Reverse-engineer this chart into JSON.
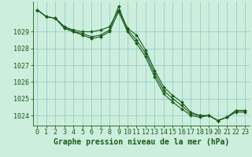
{
  "title": "Graphe pression niveau de la mer (hPa)",
  "background_color": "#cceedd",
  "grid_color": "#99cccc",
  "line_color": "#1a5c1a",
  "marker_color": "#1a5c1a",
  "xlim": [
    -0.5,
    23.5
  ],
  "ylim": [
    1023.4,
    1030.8
  ],
  "yticks": [
    1024,
    1025,
    1026,
    1027,
    1028,
    1029
  ],
  "xticks": [
    0,
    1,
    2,
    3,
    4,
    5,
    6,
    7,
    8,
    9,
    10,
    11,
    12,
    13,
    14,
    15,
    16,
    17,
    18,
    19,
    20,
    21,
    22,
    23
  ],
  "series": [
    [
      1030.3,
      1029.9,
      1029.8,
      1029.3,
      1029.1,
      1029.0,
      1029.0,
      1029.1,
      1029.3,
      1030.3,
      1029.2,
      1028.8,
      1027.9,
      1026.7,
      1025.7,
      1025.2,
      1024.8,
      1024.2,
      1024.0,
      1024.0,
      1023.7,
      1023.9,
      1024.3,
      1024.3
    ],
    [
      1030.3,
      1029.9,
      1029.8,
      1029.3,
      1029.0,
      1028.9,
      1028.7,
      1028.8,
      1029.1,
      1030.5,
      1029.1,
      1028.5,
      1027.7,
      1026.5,
      1025.5,
      1025.0,
      1024.6,
      1024.1,
      1024.0,
      1024.0,
      1023.7,
      1023.9,
      1024.3,
      1024.3
    ],
    [
      1030.3,
      1029.9,
      1029.8,
      1029.2,
      1029.0,
      1028.8,
      1028.6,
      1028.7,
      1029.0,
      1030.2,
      1029.0,
      1028.3,
      1027.5,
      1026.3,
      1025.3,
      1024.8,
      1024.4,
      1024.0,
      1023.9,
      1024.0,
      1023.7,
      1023.9,
      1024.2,
      1024.2
    ]
  ],
  "tick_fontsize": 6.0,
  "xlabel_fontsize": 7.0
}
